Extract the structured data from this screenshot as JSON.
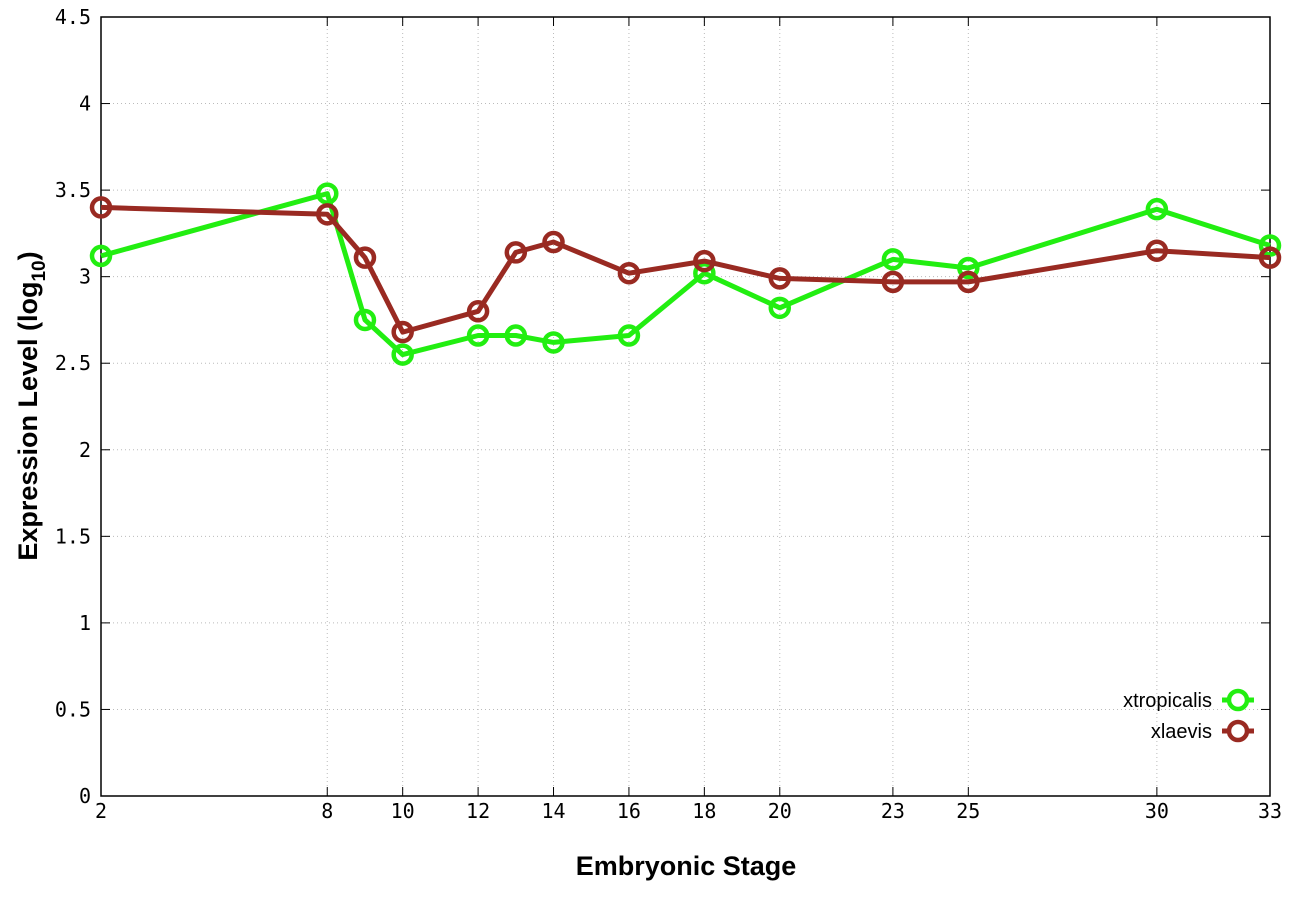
{
  "chart_data": {
    "type": "line",
    "xlabel": "Embryonic Stage",
    "ylabel_main": "Expression Level (log",
    "ylabel_sub": "10",
    "ylabel_close": ")",
    "xlim": [
      2,
      33
    ],
    "ylim": [
      0,
      4.5
    ],
    "x_ticks": [
      2,
      8,
      10,
      12,
      14,
      16,
      18,
      20,
      23,
      25,
      30,
      33
    ],
    "y_ticks": [
      0,
      0.5,
      1,
      1.5,
      2,
      2.5,
      3,
      3.5,
      4,
      4.5
    ],
    "y_tick_labels": [
      "0",
      "0.5",
      "1",
      "1.5",
      "2",
      "2.5",
      "3",
      "3.5",
      "4",
      "4.5"
    ],
    "grid": true,
    "legend_position": "bottom-right",
    "x": [
      2,
      8,
      9,
      10,
      12,
      13,
      14,
      16,
      18,
      20,
      23,
      25,
      30,
      33
    ],
    "series": [
      {
        "name": "xtropicalis",
        "color": "#22ee11",
        "values": [
          3.12,
          3.48,
          2.75,
          2.55,
          2.66,
          2.66,
          2.62,
          2.66,
          3.02,
          2.82,
          3.1,
          3.05,
          3.39,
          3.18
        ]
      },
      {
        "name": "xlaevis",
        "color": "#992a22",
        "values": [
          3.4,
          3.36,
          3.11,
          2.68,
          2.8,
          3.14,
          3.2,
          3.02,
          3.09,
          2.99,
          2.97,
          2.97,
          3.15,
          3.11
        ]
      }
    ]
  }
}
